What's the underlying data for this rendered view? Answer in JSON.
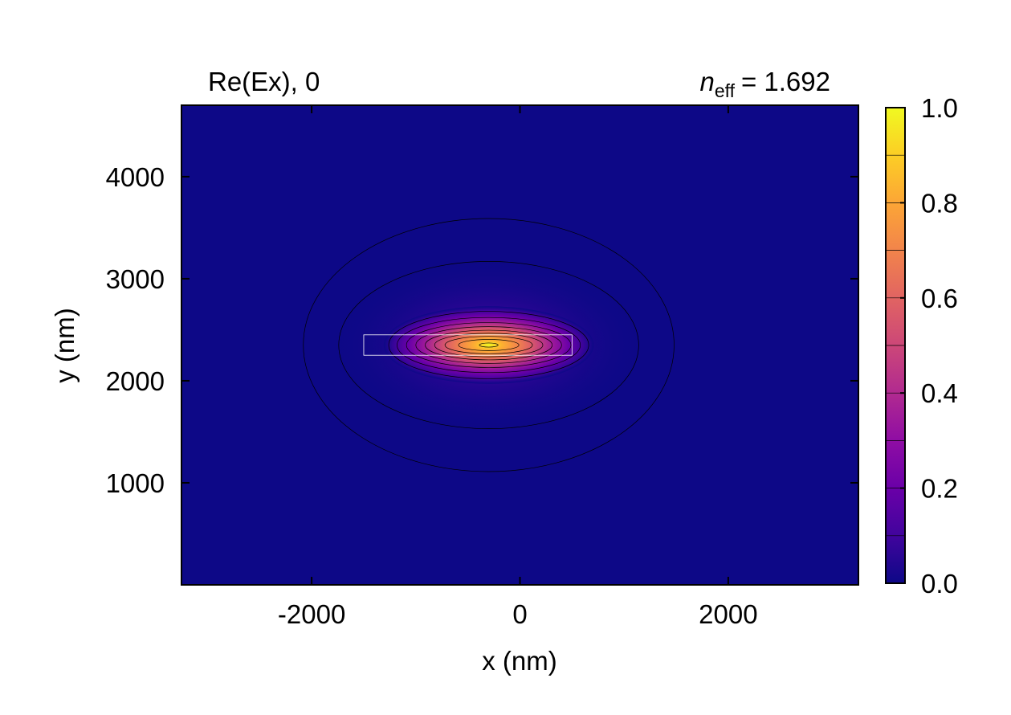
{
  "chart_data": {
    "type": "heatmap",
    "title_left": "Re(Ex), 0",
    "title_right": {
      "symbol": "n",
      "subscript": "eff",
      "value_text": "= 1.692"
    },
    "xlabel": "x (nm)",
    "ylabel": "y (nm)",
    "xlim": [
      -3250,
      3250
    ],
    "ylim": [
      0,
      4700
    ],
    "xticks": [
      -2000,
      0,
      2000
    ],
    "xtick_labels": [
      "-2000",
      "0",
      "2000"
    ],
    "yticks": [
      1000,
      2000,
      3000,
      4000
    ],
    "ytick_labels": [
      "1000",
      "2000",
      "3000",
      "4000"
    ],
    "colormap": "plasma",
    "colorbar": {
      "range": [
        0.0,
        1.0
      ],
      "ticks": [
        0.0,
        0.2,
        0.4,
        0.6,
        0.8,
        1.0
      ],
      "tick_labels": [
        "0.0",
        "0.2",
        "0.4",
        "0.6",
        "0.8",
        "1.0"
      ],
      "level_step": 0.1
    },
    "field_peak": {
      "x": -300,
      "y": 2350,
      "value": 1.0
    },
    "contours": [
      {
        "level": 0.01,
        "cx": -300,
        "cy": 2350,
        "rx": 1780,
        "ry": 1240
      },
      {
        "level": 0.1,
        "cx": -300,
        "cy": 2350,
        "rx": 1440,
        "ry": 820
      },
      {
        "level": 0.2,
        "cx": -300,
        "cy": 2350,
        "rx": 960,
        "ry": 330
      },
      {
        "level": 0.3,
        "cx": -300,
        "cy": 2350,
        "rx": 880,
        "ry": 270
      },
      {
        "level": 0.4,
        "cx": -300,
        "cy": 2350,
        "rx": 790,
        "ry": 220
      },
      {
        "level": 0.5,
        "cx": -300,
        "cy": 2350,
        "rx": 700,
        "ry": 180
      },
      {
        "level": 0.6,
        "cx": -300,
        "cy": 2350,
        "rx": 610,
        "ry": 145
      },
      {
        "level": 0.7,
        "cx": -300,
        "cy": 2350,
        "rx": 520,
        "ry": 115
      },
      {
        "level": 0.8,
        "cx": -300,
        "cy": 2350,
        "rx": 420,
        "ry": 85
      },
      {
        "level": 0.9,
        "cx": -300,
        "cy": 2350,
        "rx": 290,
        "ry": 55
      },
      {
        "level": 0.98,
        "cx": -300,
        "cy": 2350,
        "rx": 90,
        "ry": 20
      }
    ],
    "waveguide": {
      "x0": -1500,
      "x1": 500,
      "y0": 2250,
      "y1": 2450
    }
  },
  "colors": {
    "background": "#0d0887",
    "contour": "#000000",
    "waveguide_outline": "#ffffff",
    "axes": "#000000"
  }
}
